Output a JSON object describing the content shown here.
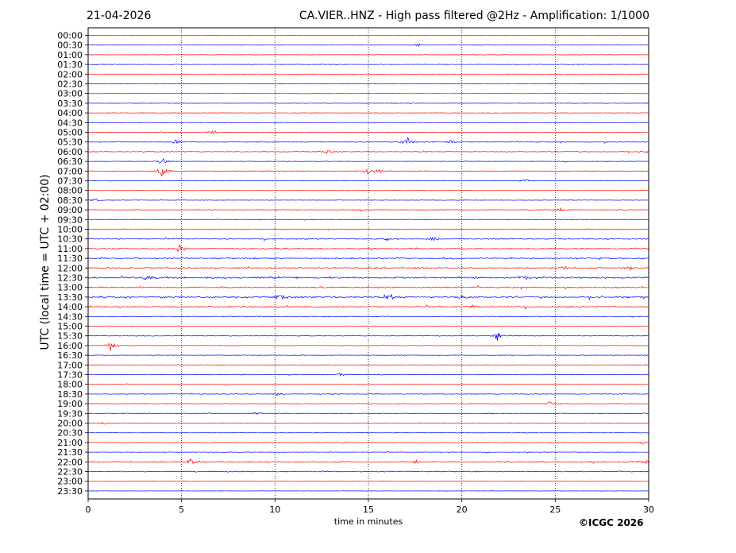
{
  "header": {
    "date": "21-04-2026",
    "title": "CA.VIER..HNZ - High pass filtered @2Hz - Amplification: 1/1000"
  },
  "footer": {
    "copyright": "©ICGC 2026"
  },
  "chart_data": {
    "type": "line",
    "subtype": "helicorder",
    "xlabel": "time in minutes",
    "ylabel": "UTC (local time = UTC + 02:00)",
    "xlim": [
      0,
      30
    ],
    "x_ticks": [
      0,
      5,
      10,
      15,
      20,
      25,
      30
    ],
    "grid": "vertical dotted lines at 5, 10, 15, 20, 25 minutes",
    "colors": {
      "red_trace": "#ff0000",
      "blue_trace": "#0000ff"
    },
    "color_pattern": "alternating red/blue per trace, starting with red at 00:00",
    "traces": [
      {
        "label": "00:00",
        "color": "red",
        "activity": 0.4,
        "events": []
      },
      {
        "label": "00:30",
        "color": "blue",
        "activity": 0.3,
        "events": [
          {
            "t": 17.7,
            "amp": 0.5
          }
        ]
      },
      {
        "label": "01:00",
        "color": "red",
        "activity": 0.5,
        "events": []
      },
      {
        "label": "01:30",
        "color": "blue",
        "activity": 0.5,
        "events": []
      },
      {
        "label": "02:00",
        "color": "red",
        "activity": 0.3,
        "events": []
      },
      {
        "label": "02:30",
        "color": "blue",
        "activity": 0.3,
        "events": []
      },
      {
        "label": "03:00",
        "color": "red",
        "activity": 0.3,
        "events": []
      },
      {
        "label": "03:30",
        "color": "blue",
        "activity": 0.4,
        "events": []
      },
      {
        "label": "04:00",
        "color": "red",
        "activity": 0.4,
        "events": []
      },
      {
        "label": "04:30",
        "color": "blue",
        "activity": 0.5,
        "events": []
      },
      {
        "label": "05:00",
        "color": "red",
        "activity": 0.6,
        "events": [
          {
            "t": 6.7,
            "amp": 0.9
          }
        ]
      },
      {
        "label": "05:30",
        "color": "blue",
        "activity": 0.9,
        "events": [
          {
            "t": 4.7,
            "amp": 0.7
          },
          {
            "t": 17.1,
            "amp": 1.4
          },
          {
            "t": 19.4,
            "amp": 0.7
          }
        ]
      },
      {
        "label": "06:00",
        "color": "red",
        "activity": 0.8,
        "events": [
          {
            "t": 12.8,
            "amp": 0.5
          },
          {
            "t": 29.9,
            "amp": 0.6
          }
        ]
      },
      {
        "label": "06:30",
        "color": "blue",
        "activity": 0.5,
        "events": [
          {
            "t": 4.0,
            "amp": 1.3
          }
        ]
      },
      {
        "label": "07:00",
        "color": "red",
        "activity": 0.6,
        "events": [
          {
            "t": 4.0,
            "amp": 2.3
          },
          {
            "t": 15.0,
            "amp": 1.1
          },
          {
            "t": 15.6,
            "amp": 0.6
          }
        ]
      },
      {
        "label": "07:30",
        "color": "blue",
        "activity": 0.5,
        "events": [
          {
            "t": 23.4,
            "amp": 0.7
          }
        ]
      },
      {
        "label": "08:00",
        "color": "red",
        "activity": 0.4,
        "events": []
      },
      {
        "label": "08:30",
        "color": "blue",
        "activity": 0.5,
        "events": [
          {
            "t": 0.4,
            "amp": 0.6
          }
        ]
      },
      {
        "label": "09:00",
        "color": "red",
        "activity": 0.6,
        "events": [
          {
            "t": 14.5,
            "amp": 0.7
          },
          {
            "t": 25.3,
            "amp": 0.6
          }
        ]
      },
      {
        "label": "09:30",
        "color": "blue",
        "activity": 0.6,
        "events": []
      },
      {
        "label": "10:00",
        "color": "red",
        "activity": 0.6,
        "events": []
      },
      {
        "label": "10:30",
        "color": "blue",
        "activity": 1.0,
        "events": [
          {
            "t": 16.0,
            "amp": 0.5
          },
          {
            "t": 18.5,
            "amp": 0.6
          }
        ]
      },
      {
        "label": "11:00",
        "color": "red",
        "activity": 1.3,
        "events": [
          {
            "t": 4.9,
            "amp": 1.5
          }
        ]
      },
      {
        "label": "11:30",
        "color": "blue",
        "activity": 1.3,
        "events": []
      },
      {
        "label": "12:00",
        "color": "red",
        "activity": 1.4,
        "events": [
          {
            "t": 25.5,
            "amp": 0.7
          },
          {
            "t": 29.0,
            "amp": 0.6
          }
        ]
      },
      {
        "label": "12:30",
        "color": "blue",
        "activity": 1.8,
        "events": [
          {
            "t": 3.2,
            "amp": 0.7
          },
          {
            "t": 23.4,
            "amp": 0.7
          }
        ]
      },
      {
        "label": "13:00",
        "color": "red",
        "activity": 1.4,
        "events": []
      },
      {
        "label": "13:30",
        "color": "blue",
        "activity": 1.7,
        "events": [
          {
            "t": 10.3,
            "amp": 1.0
          },
          {
            "t": 16.2,
            "amp": 0.9
          },
          {
            "t": 20.0,
            "amp": 0.8
          }
        ]
      },
      {
        "label": "14:00",
        "color": "red",
        "activity": 1.3,
        "events": [
          {
            "t": 20.5,
            "amp": 0.8
          }
        ]
      },
      {
        "label": "14:30",
        "color": "blue",
        "activity": 0.7,
        "events": []
      },
      {
        "label": "15:00",
        "color": "red",
        "activity": 0.5,
        "events": []
      },
      {
        "label": "15:30",
        "color": "blue",
        "activity": 0.6,
        "events": [
          {
            "t": 21.9,
            "amp": 1.5
          }
        ]
      },
      {
        "label": "16:00",
        "color": "red",
        "activity": 0.5,
        "events": [
          {
            "t": 1.2,
            "amp": 1.5
          }
        ]
      },
      {
        "label": "16:30",
        "color": "blue",
        "activity": 0.6,
        "events": []
      },
      {
        "label": "17:00",
        "color": "red",
        "activity": 0.6,
        "events": []
      },
      {
        "label": "17:30",
        "color": "blue",
        "activity": 0.6,
        "events": [
          {
            "t": 13.5,
            "amp": 0.4
          }
        ]
      },
      {
        "label": "18:00",
        "color": "red",
        "activity": 0.6,
        "events": []
      },
      {
        "label": "18:30",
        "color": "blue",
        "activity": 0.7,
        "events": [
          {
            "t": 10.1,
            "amp": 0.5
          }
        ]
      },
      {
        "label": "19:00",
        "color": "red",
        "activity": 0.6,
        "events": [
          {
            "t": 24.7,
            "amp": 0.6
          }
        ]
      },
      {
        "label": "19:30",
        "color": "blue",
        "activity": 0.6,
        "events": [
          {
            "t": 9.0,
            "amp": 0.4
          }
        ]
      },
      {
        "label": "20:00",
        "color": "red",
        "activity": 0.5,
        "events": [
          {
            "t": 0.8,
            "amp": 0.4
          }
        ]
      },
      {
        "label": "20:30",
        "color": "blue",
        "activity": 0.4,
        "events": []
      },
      {
        "label": "21:00",
        "color": "red",
        "activity": 0.6,
        "events": [
          {
            "t": 29.7,
            "amp": 0.5
          }
        ]
      },
      {
        "label": "21:30",
        "color": "blue",
        "activity": 0.5,
        "events": []
      },
      {
        "label": "22:00",
        "color": "red",
        "activity": 1.2,
        "events": [
          {
            "t": 5.5,
            "amp": 0.8
          },
          {
            "t": 17.6,
            "amp": 0.8
          },
          {
            "t": 29.9,
            "amp": 0.6
          }
        ]
      },
      {
        "label": "22:30",
        "color": "blue",
        "activity": 1.0,
        "events": []
      },
      {
        "label": "23:00",
        "color": "red",
        "activity": 0.5,
        "events": []
      },
      {
        "label": "23:30",
        "color": "blue",
        "activity": 0.3,
        "events": []
      }
    ]
  }
}
